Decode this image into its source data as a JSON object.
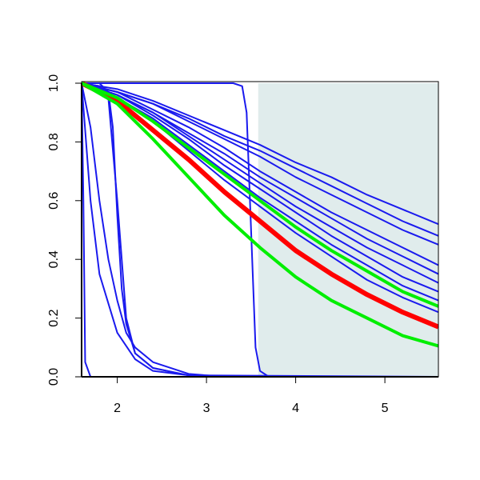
{
  "chart_data": {
    "type": "line",
    "xlim": [
      1.6,
      5.6
    ],
    "ylim": [
      0,
      1
    ],
    "xticks": [
      2,
      3,
      4,
      5
    ],
    "yticks": [
      {
        "value": 0,
        "label": "0.0"
      },
      0.2,
      0.4,
      0.6,
      0.8,
      {
        "value": 1,
        "label": "1.0"
      }
    ],
    "shaded_region": {
      "xlim": [
        3.58,
        5.6
      ],
      "color": "#e0ecec"
    },
    "x": [
      1.6,
      2.0,
      2.4,
      2.8,
      3.2,
      3.6,
      4.0,
      4.4,
      4.8,
      5.2,
      5.6
    ],
    "series": [
      {
        "color": "#1a1aee",
        "values": [
          1,
          0.98,
          0.94,
          0.89,
          0.84,
          0.79,
          0.73,
          0.68,
          0.62,
          0.57,
          0.52
        ]
      },
      {
        "color": "#1a1aee",
        "values": [
          1,
          0.97,
          0.93,
          0.88,
          0.82,
          0.77,
          0.71,
          0.65,
          0.59,
          0.53,
          0.48
        ]
      },
      {
        "color": "#1a1aee",
        "values": [
          1,
          0.97,
          0.93,
          0.87,
          0.81,
          0.75,
          0.68,
          0.62,
          0.56,
          0.5,
          0.45
        ]
      },
      {
        "color": "#1a1aee",
        "values": [
          1,
          0.97,
          0.91,
          0.85,
          0.78,
          0.7,
          0.63,
          0.56,
          0.5,
          0.44,
          0.38
        ]
      },
      {
        "color": "#1a1aee",
        "values": [
          1,
          0.96,
          0.9,
          0.83,
          0.76,
          0.68,
          0.61,
          0.54,
          0.47,
          0.41,
          0.35
        ]
      },
      {
        "color": "#1a1aee",
        "values": [
          1,
          0.96,
          0.9,
          0.82,
          0.74,
          0.66,
          0.58,
          0.51,
          0.44,
          0.38,
          0.32
        ]
      },
      {
        "color": "#1a1aee",
        "values": [
          1,
          0.96,
          0.89,
          0.81,
          0.72,
          0.64,
          0.56,
          0.48,
          0.41,
          0.34,
          0.29
        ]
      },
      {
        "color": "#1a1aee",
        "values": [
          1,
          0.95,
          0.88,
          0.79,
          0.7,
          0.61,
          0.53,
          0.45,
          0.38,
          0.31,
          0.26
        ]
      },
      {
        "color": "#1a1aee",
        "values": [
          1,
          0.95,
          0.87,
          0.77,
          0.67,
          0.58,
          0.49,
          0.41,
          0.33,
          0.27,
          0.22
        ]
      },
      {
        "color": "#1a1aee",
        "x": [
          1.6,
          1.62,
          1.64,
          1.7,
          5.6
        ],
        "values": [
          1,
          0.6,
          0.05,
          0,
          0
        ]
      },
      {
        "color": "#1a1aee",
        "x": [
          1.6,
          1.8,
          1.9,
          2.0,
          2.1,
          2.2,
          2.4,
          2.8,
          3.2,
          5.6
        ],
        "values": [
          1,
          0.99,
          0.95,
          0.6,
          0.2,
          0.08,
          0.03,
          0.005,
          0,
          0
        ]
      },
      {
        "color": "#1a1aee",
        "x": [
          1.6,
          1.7,
          1.8,
          1.9,
          2.0,
          2.1,
          2.2,
          2.4,
          2.8,
          3.2,
          5.6
        ],
        "values": [
          1,
          0.85,
          0.6,
          0.4,
          0.26,
          0.15,
          0.1,
          0.05,
          0.01,
          0,
          0
        ]
      },
      {
        "color": "#1a1aee",
        "x": [
          1.6,
          1.7,
          1.8,
          2.0,
          2.2,
          2.4,
          2.8,
          3.2,
          5.6
        ],
        "values": [
          1,
          0.6,
          0.35,
          0.15,
          0.06,
          0.02,
          0.005,
          0,
          0
        ]
      },
      {
        "color": "#1a1aee",
        "x": [
          1.6,
          3.3,
          3.4,
          3.45,
          3.5,
          3.55,
          3.6,
          3.7,
          5.6
        ],
        "values": [
          1,
          1,
          0.99,
          0.9,
          0.5,
          0.1,
          0.02,
          0,
          0
        ]
      },
      {
        "color": "#1a1aee",
        "x": [
          1.6,
          1.8,
          1.9,
          1.95,
          2.0,
          2.05,
          2.1,
          2.2,
          2.4,
          2.8,
          5.6
        ],
        "values": [
          1,
          1,
          0.97,
          0.85,
          0.55,
          0.3,
          0.18,
          0.08,
          0.03,
          0.005,
          0
        ]
      },
      {
        "color": "#ff0000",
        "width": 6,
        "values": [
          1,
          0.94,
          0.84,
          0.74,
          0.63,
          0.53,
          0.43,
          0.35,
          0.28,
          0.22,
          0.17
        ]
      },
      {
        "color": "#00ee00",
        "width": 4,
        "values": [
          1,
          0.95,
          0.87,
          0.78,
          0.69,
          0.6,
          0.51,
          0.43,
          0.36,
          0.29,
          0.24
        ]
      },
      {
        "color": "#00ee00",
        "width": 4,
        "values": [
          1,
          0.93,
          0.81,
          0.68,
          0.55,
          0.44,
          0.34,
          0.26,
          0.2,
          0.14,
          0.105
        ]
      }
    ]
  }
}
